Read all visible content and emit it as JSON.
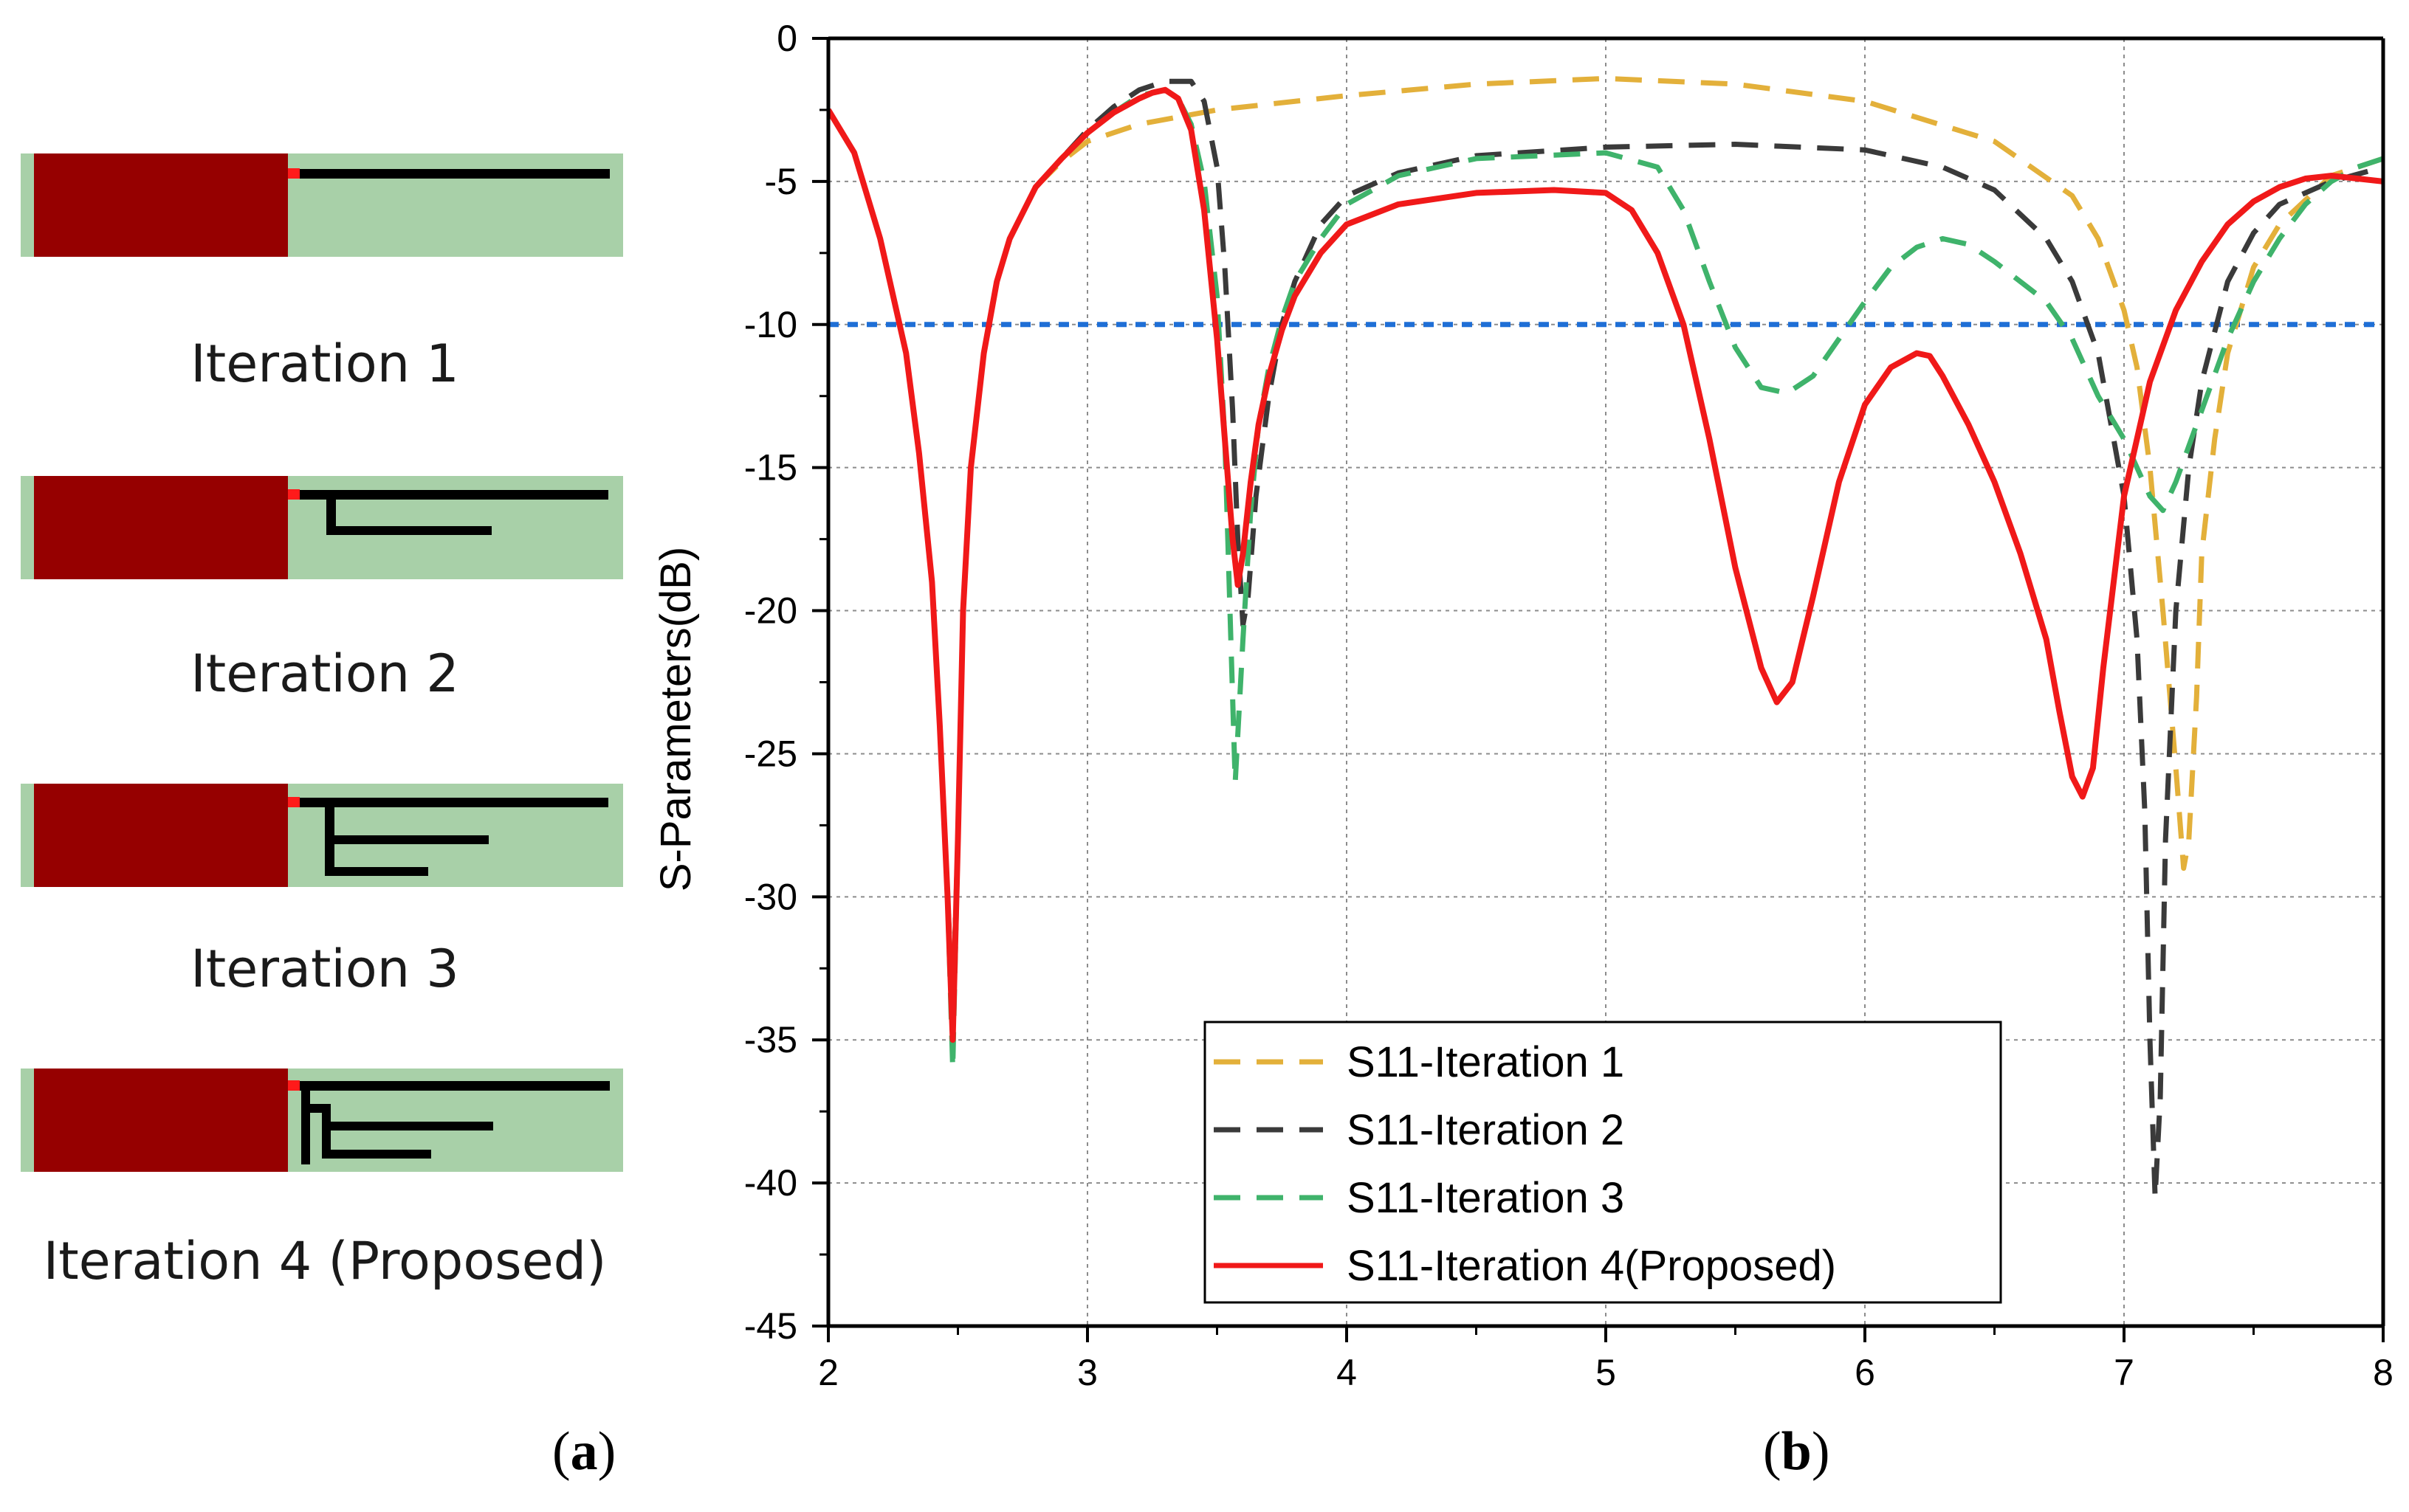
{
  "panel_a": {
    "letter": "a",
    "iterations": [
      {
        "label": "Iteration 1"
      },
      {
        "label": "Iteration 2"
      },
      {
        "label": "Iteration 3"
      },
      {
        "label": "Iteration 4 (Proposed)"
      }
    ],
    "colors": {
      "substrate": "#a8d0a8",
      "ground": "#960000",
      "trace": "#000000",
      "feed": "#ff1a1a"
    }
  },
  "panel_b": {
    "letter": "b"
  },
  "chart_data": {
    "type": "line",
    "title": "",
    "xlabel": "",
    "ylabel": "S-Parameters(dB)",
    "xlim": [
      2,
      8
    ],
    "ylim": [
      -45,
      0
    ],
    "xticks": [
      "2",
      "3",
      "4",
      "5",
      "6",
      "7",
      "8"
    ],
    "yticks": [
      "0",
      "-5",
      "-10",
      "-15",
      "-20",
      "-25",
      "-30",
      "-35",
      "-40",
      "-45"
    ],
    "grid": true,
    "legend_position": "bottom-center",
    "reference_line": {
      "y": -10,
      "color": "#1f6fd6",
      "style": "dashed"
    },
    "series": [
      {
        "name": "S11-Iteration 1",
        "color": "#e3b03a",
        "style": "dashed",
        "x": [
          2.0,
          2.1,
          2.2,
          2.3,
          2.35,
          2.4,
          2.43,
          2.46,
          2.48,
          2.5,
          2.52,
          2.55,
          2.6,
          2.65,
          2.7,
          2.8,
          2.9,
          3.0,
          3.2,
          3.5,
          4.0,
          4.5,
          5.0,
          5.5,
          6.0,
          6.5,
          6.8,
          6.9,
          7.0,
          7.05,
          7.1,
          7.15,
          7.2,
          7.23,
          7.25,
          7.28,
          7.3,
          7.35,
          7.4,
          7.5,
          7.6,
          7.8,
          8.0
        ],
        "y": [
          -2.5,
          -4,
          -7,
          -11,
          -14.5,
          -19,
          -24,
          -30,
          -34,
          -28,
          -20,
          -15,
          -11,
          -8.5,
          -7,
          -5.2,
          -4.3,
          -3.6,
          -3.0,
          -2.5,
          -2.0,
          -1.6,
          -1.4,
          -1.6,
          -2.2,
          -3.6,
          -5.5,
          -7,
          -9.5,
          -11.5,
          -15,
          -20,
          -25.5,
          -29,
          -28,
          -23,
          -18,
          -14,
          -11,
          -8,
          -6.5,
          -4.8,
          -4.2
        ]
      },
      {
        "name": "S11-Iteration 2",
        "color": "#3a3a3a",
        "style": "dashed",
        "x": [
          2.0,
          2.1,
          2.2,
          2.3,
          2.35,
          2.4,
          2.43,
          2.46,
          2.48,
          2.5,
          2.52,
          2.55,
          2.6,
          2.65,
          2.7,
          2.8,
          2.9,
          3.0,
          3.1,
          3.2,
          3.3,
          3.4,
          3.45,
          3.5,
          3.53,
          3.56,
          3.58,
          3.6,
          3.62,
          3.65,
          3.7,
          3.75,
          3.8,
          3.9,
          4.0,
          4.2,
          4.5,
          5.0,
          5.5,
          6.0,
          6.3,
          6.5,
          6.7,
          6.8,
          6.9,
          7.0,
          7.05,
          7.08,
          7.1,
          7.12,
          7.14,
          7.16,
          7.2,
          7.25,
          7.3,
          7.4,
          7.5,
          7.6,
          7.8,
          8.0
        ],
        "y": [
          -2.5,
          -4,
          -7,
          -11,
          -14.5,
          -19,
          -24,
          -30,
          -34,
          -28,
          -20,
          -15,
          -11,
          -8.5,
          -7,
          -5.2,
          -4.2,
          -3.2,
          -2.4,
          -1.8,
          -1.5,
          -1.5,
          -2.2,
          -4.5,
          -8,
          -13,
          -17.5,
          -20.5,
          -19.5,
          -16,
          -12.5,
          -10,
          -8.5,
          -6.5,
          -5.5,
          -4.7,
          -4.1,
          -3.8,
          -3.7,
          -3.9,
          -4.5,
          -5.3,
          -7,
          -8.5,
          -11,
          -16,
          -21,
          -27,
          -35,
          -40.5,
          -37,
          -28,
          -20,
          -15,
          -12,
          -8.5,
          -6.8,
          -5.8,
          -5.0,
          -4.5
        ]
      },
      {
        "name": "S11-Iteration 3",
        "color": "#3fb36b",
        "style": "dashed",
        "x": [
          2.0,
          2.1,
          2.2,
          2.3,
          2.35,
          2.4,
          2.43,
          2.46,
          2.48,
          2.5,
          2.52,
          2.55,
          2.6,
          2.65,
          2.7,
          2.8,
          2.9,
          3.0,
          3.1,
          3.2,
          3.3,
          3.35,
          3.4,
          3.45,
          3.5,
          3.53,
          3.55,
          3.57,
          3.6,
          3.63,
          3.66,
          3.7,
          3.75,
          3.8,
          3.9,
          4.0,
          4.2,
          4.5,
          5.0,
          5.2,
          5.3,
          5.4,
          5.5,
          5.6,
          5.7,
          5.8,
          5.9,
          6.0,
          6.1,
          6.2,
          6.3,
          6.4,
          6.5,
          6.6,
          6.7,
          6.8,
          6.9,
          7.0,
          7.1,
          7.15,
          7.2,
          7.3,
          7.4,
          7.5,
          7.6,
          7.7,
          7.8,
          7.9,
          8.0
        ],
        "y": [
          -2.5,
          -4,
          -7,
          -11,
          -14.5,
          -19,
          -24,
          -30,
          -36,
          -28,
          -20,
          -15,
          -11,
          -8.5,
          -7,
          -5.2,
          -4.2,
          -3.3,
          -2.6,
          -2.0,
          -1.8,
          -2.1,
          -3.0,
          -5.0,
          -9,
          -14,
          -20,
          -26,
          -21,
          -16.5,
          -13.5,
          -11.5,
          -9.8,
          -8.5,
          -7,
          -5.8,
          -4.8,
          -4.2,
          -4.0,
          -4.5,
          -6.0,
          -8.5,
          -10.8,
          -12.2,
          -12.4,
          -11.8,
          -10.5,
          -9.2,
          -8.0,
          -7.3,
          -7.0,
          -7.2,
          -7.8,
          -8.5,
          -9.2,
          -10.5,
          -12.5,
          -14,
          -16,
          -16.5,
          -15.5,
          -13,
          -10.5,
          -8.5,
          -7,
          -5.8,
          -5,
          -4.5,
          -4.2
        ]
      },
      {
        "name": "S11-Iteration 4(Proposed)",
        "color": "#f01919",
        "style": "solid",
        "x": [
          2.0,
          2.1,
          2.2,
          2.3,
          2.35,
          2.4,
          2.43,
          2.46,
          2.48,
          2.5,
          2.52,
          2.55,
          2.6,
          2.65,
          2.7,
          2.8,
          2.9,
          3.0,
          3.1,
          3.2,
          3.25,
          3.3,
          3.35,
          3.4,
          3.45,
          3.5,
          3.53,
          3.56,
          3.58,
          3.6,
          3.63,
          3.66,
          3.7,
          3.75,
          3.8,
          3.9,
          4.0,
          4.2,
          4.5,
          4.8,
          5.0,
          5.1,
          5.2,
          5.3,
          5.4,
          5.5,
          5.6,
          5.66,
          5.72,
          5.8,
          5.9,
          6.0,
          6.1,
          6.2,
          6.25,
          6.3,
          6.4,
          6.5,
          6.6,
          6.7,
          6.75,
          6.8,
          6.84,
          6.88,
          6.92,
          7.0,
          7.1,
          7.2,
          7.3,
          7.4,
          7.5,
          7.6,
          7.7,
          7.8,
          7.9,
          8.0
        ],
        "y": [
          -2.5,
          -4,
          -7,
          -11,
          -14.5,
          -19,
          -24,
          -30,
          -35,
          -28,
          -20,
          -15,
          -11,
          -8.5,
          -7,
          -5.2,
          -4.2,
          -3.3,
          -2.6,
          -2.1,
          -1.9,
          -1.8,
          -2.1,
          -3.2,
          -6,
          -10.5,
          -14,
          -17.5,
          -19.1,
          -18,
          -15.5,
          -13.5,
          -11.8,
          -10.2,
          -9,
          -7.5,
          -6.5,
          -5.8,
          -5.4,
          -5.3,
          -5.4,
          -6.0,
          -7.5,
          -10,
          -14,
          -18.5,
          -22,
          -23.2,
          -22.5,
          -19.5,
          -15.5,
          -12.8,
          -11.5,
          -11.0,
          -11.1,
          -11.8,
          -13.5,
          -15.5,
          -18,
          -21,
          -23.5,
          -25.8,
          -26.5,
          -25.5,
          -22,
          -16,
          -12,
          -9.5,
          -7.8,
          -6.5,
          -5.7,
          -5.2,
          -4.9,
          -4.8,
          -4.9,
          -5.0
        ]
      }
    ]
  }
}
